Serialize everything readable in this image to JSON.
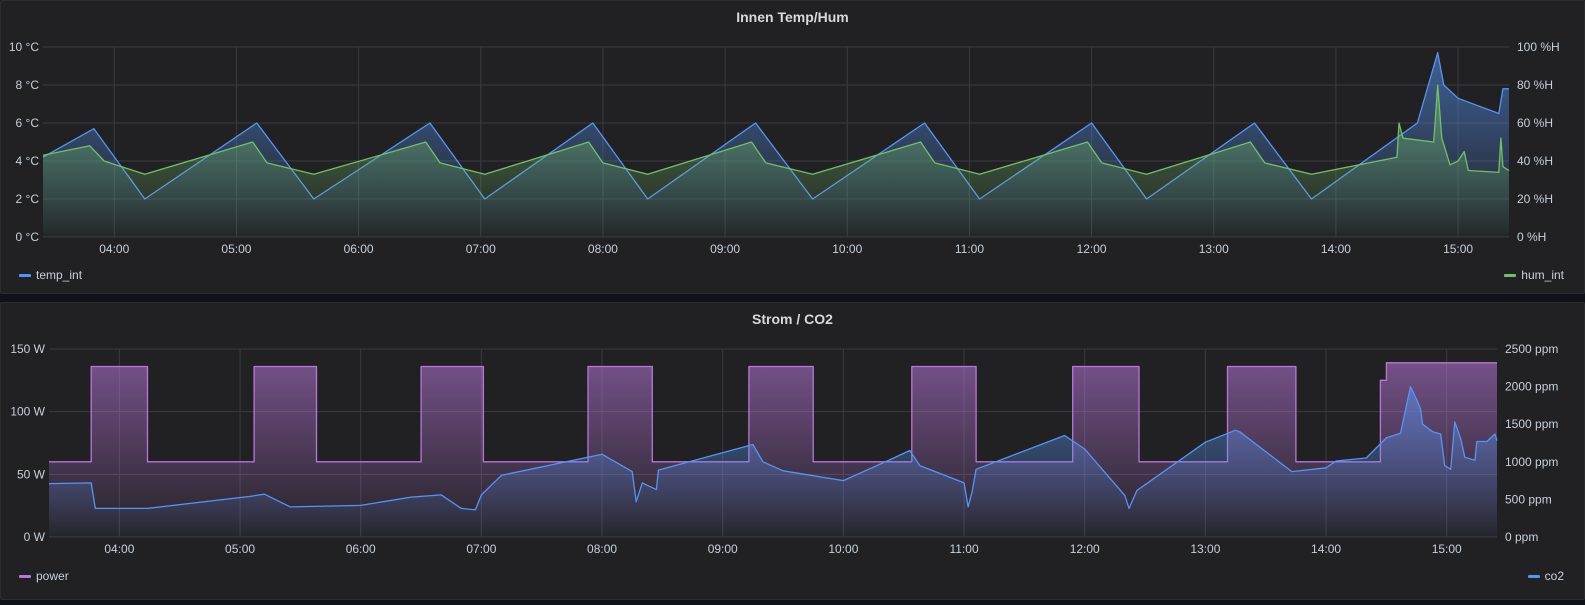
{
  "chart_data": [
    {
      "type": "area",
      "title": "Innen Temp/Hum",
      "x_ticks": [
        "04:00",
        "05:00",
        "06:00",
        "07:00",
        "08:00",
        "09:00",
        "10:00",
        "11:00",
        "12:00",
        "13:00",
        "14:00",
        "15:00"
      ],
      "x_range": [
        "03:25",
        "15:25"
      ],
      "y_left": {
        "ticks": [
          "0 °C",
          "2 °C",
          "4 °C",
          "6 °C",
          "8 °C",
          "10 °C"
        ],
        "ylim": [
          0,
          10
        ],
        "unit": "°C"
      },
      "y_right": {
        "ticks": [
          "0 %H",
          "20 %H",
          "40 %H",
          "60 %H",
          "80 %H",
          "100 %H"
        ],
        "ylim": [
          0,
          100
        ],
        "unit": "%H"
      },
      "grid": true,
      "series": [
        {
          "name": "temp_int",
          "axis": "left",
          "color": "#5794f2",
          "x": [
            "03:25",
            "03:50",
            "04:15",
            "05:10",
            "05:38",
            "06:35",
            "07:02",
            "07:55",
            "08:22",
            "09:15",
            "09:43",
            "10:38",
            "11:05",
            "12:00",
            "12:27",
            "13:20",
            "13:48",
            "14:40",
            "14:50",
            "14:53",
            "15:00",
            "15:20",
            "15:22",
            "15:25"
          ],
          "values": [
            4.2,
            5.7,
            2.0,
            6.0,
            2.0,
            6.0,
            2.0,
            6.0,
            2.0,
            6.0,
            2.0,
            6.0,
            2.0,
            6.0,
            2.0,
            6.0,
            2.0,
            6.0,
            9.7,
            8.0,
            7.3,
            6.5,
            7.8,
            7.8
          ]
        },
        {
          "name": "hum_int",
          "axis": "right",
          "color": "#73bf69",
          "x": [
            "03:25",
            "03:48",
            "03:55",
            "04:15",
            "05:08",
            "05:15",
            "05:38",
            "06:33",
            "06:40",
            "07:02",
            "07:53",
            "08:00",
            "08:22",
            "09:13",
            "09:20",
            "09:43",
            "10:36",
            "10:43",
            "11:05",
            "11:58",
            "12:05",
            "12:27",
            "13:18",
            "13:25",
            "13:48",
            "14:30",
            "14:31",
            "14:33",
            "14:48",
            "14:50",
            "14:52",
            "14:56",
            "15:00",
            "15:03",
            "15:05",
            "15:20",
            "15:21",
            "15:22",
            "15:25"
          ],
          "values": [
            43,
            48,
            40,
            33,
            50,
            39,
            33,
            50,
            39,
            33,
            50,
            39,
            33,
            50,
            39,
            33,
            50,
            39,
            33,
            50,
            39,
            33,
            50,
            39,
            33,
            42,
            60,
            52,
            50,
            80,
            52,
            38,
            40,
            45,
            35,
            34,
            52,
            37,
            35
          ]
        }
      ]
    },
    {
      "type": "area",
      "title": "Strom / CO2",
      "x_ticks": [
        "04:00",
        "05:00",
        "06:00",
        "07:00",
        "08:00",
        "09:00",
        "10:00",
        "11:00",
        "12:00",
        "13:00",
        "14:00",
        "15:00"
      ],
      "x_range": [
        "03:25",
        "15:25"
      ],
      "y_left": {
        "ticks": [
          "0 W",
          "50 W",
          "100 W",
          "150 W"
        ],
        "ylim": [
          0,
          150
        ],
        "unit": "W"
      },
      "y_right": {
        "ticks": [
          "0 ppm",
          "500 ppm",
          "1000 ppm",
          "1500 ppm",
          "2000 ppm",
          "2500 ppm"
        ],
        "ylim": [
          0,
          2500
        ],
        "unit": "ppm"
      },
      "grid": true,
      "series": [
        {
          "name": "power",
          "axis": "left",
          "color": "#b877d9",
          "segments": [
            {
              "from": "03:25",
              "to": "03:46",
              "value": 60
            },
            {
              "from": "03:46",
              "to": "04:14",
              "value": 136
            },
            {
              "from": "04:14",
              "to": "05:07",
              "value": 60
            },
            {
              "from": "05:07",
              "to": "05:38",
              "value": 136
            },
            {
              "from": "05:38",
              "to": "06:30",
              "value": 60
            },
            {
              "from": "06:30",
              "to": "07:01",
              "value": 136
            },
            {
              "from": "07:01",
              "to": "07:53",
              "value": 60
            },
            {
              "from": "07:53",
              "to": "08:25",
              "value": 136
            },
            {
              "from": "08:25",
              "to": "09:13",
              "value": 60
            },
            {
              "from": "09:13",
              "to": "09:45",
              "value": 136
            },
            {
              "from": "09:45",
              "to": "10:34",
              "value": 60
            },
            {
              "from": "10:34",
              "to": "11:06",
              "value": 136
            },
            {
              "from": "11:06",
              "to": "11:54",
              "value": 60
            },
            {
              "from": "11:54",
              "to": "12:27",
              "value": 136
            },
            {
              "from": "12:27",
              "to": "13:11",
              "value": 60
            },
            {
              "from": "13:11",
              "to": "13:45",
              "value": 136
            },
            {
              "from": "13:45",
              "to": "14:27",
              "value": 60
            },
            {
              "from": "14:27",
              "to": "14:30",
              "value": 125
            },
            {
              "from": "14:30",
              "to": "15:25",
              "value": 139
            }
          ]
        },
        {
          "name": "co2",
          "axis": "right",
          "color": "#5794f2",
          "x": [
            "03:25",
            "03:46",
            "03:48",
            "04:14",
            "05:05",
            "05:12",
            "05:25",
            "06:00",
            "06:25",
            "06:40",
            "06:50",
            "06:57",
            "07:00",
            "07:10",
            "08:00",
            "08:15",
            "08:17",
            "08:20",
            "08:27",
            "08:28",
            "09:15",
            "09:20",
            "09:30",
            "10:00",
            "10:25",
            "10:33",
            "10:38",
            "11:00",
            "11:02",
            "11:04",
            "11:06",
            "11:50",
            "12:00",
            "12:20",
            "12:22",
            "12:26",
            "13:00",
            "13:15",
            "13:17",
            "13:43",
            "14:00",
            "14:05",
            "14:20",
            "14:30",
            "14:37",
            "14:42",
            "14:45",
            "14:47",
            "14:48",
            "14:53",
            "14:57",
            "14:59",
            "15:02",
            "15:04",
            "15:07",
            "15:09",
            "15:14",
            "15:15",
            "15:20",
            "15:24",
            "15:25"
          ],
          "values": [
            710,
            720,
            380,
            380,
            540,
            570,
            400,
            420,
            530,
            560,
            380,
            360,
            560,
            820,
            1100,
            870,
            470,
            720,
            630,
            890,
            1230,
            1000,
            880,
            750,
            1050,
            1150,
            950,
            720,
            400,
            600,
            900,
            1350,
            1170,
            550,
            380,
            620,
            1260,
            1420,
            1400,
            870,
            920,
            1010,
            1050,
            1320,
            1380,
            2000,
            1830,
            1700,
            1500,
            1400,
            1370,
            950,
            900,
            1530,
            1300,
            1060,
            1020,
            1270,
            1270,
            1370,
            1280
          ]
        }
      ]
    }
  ]
}
